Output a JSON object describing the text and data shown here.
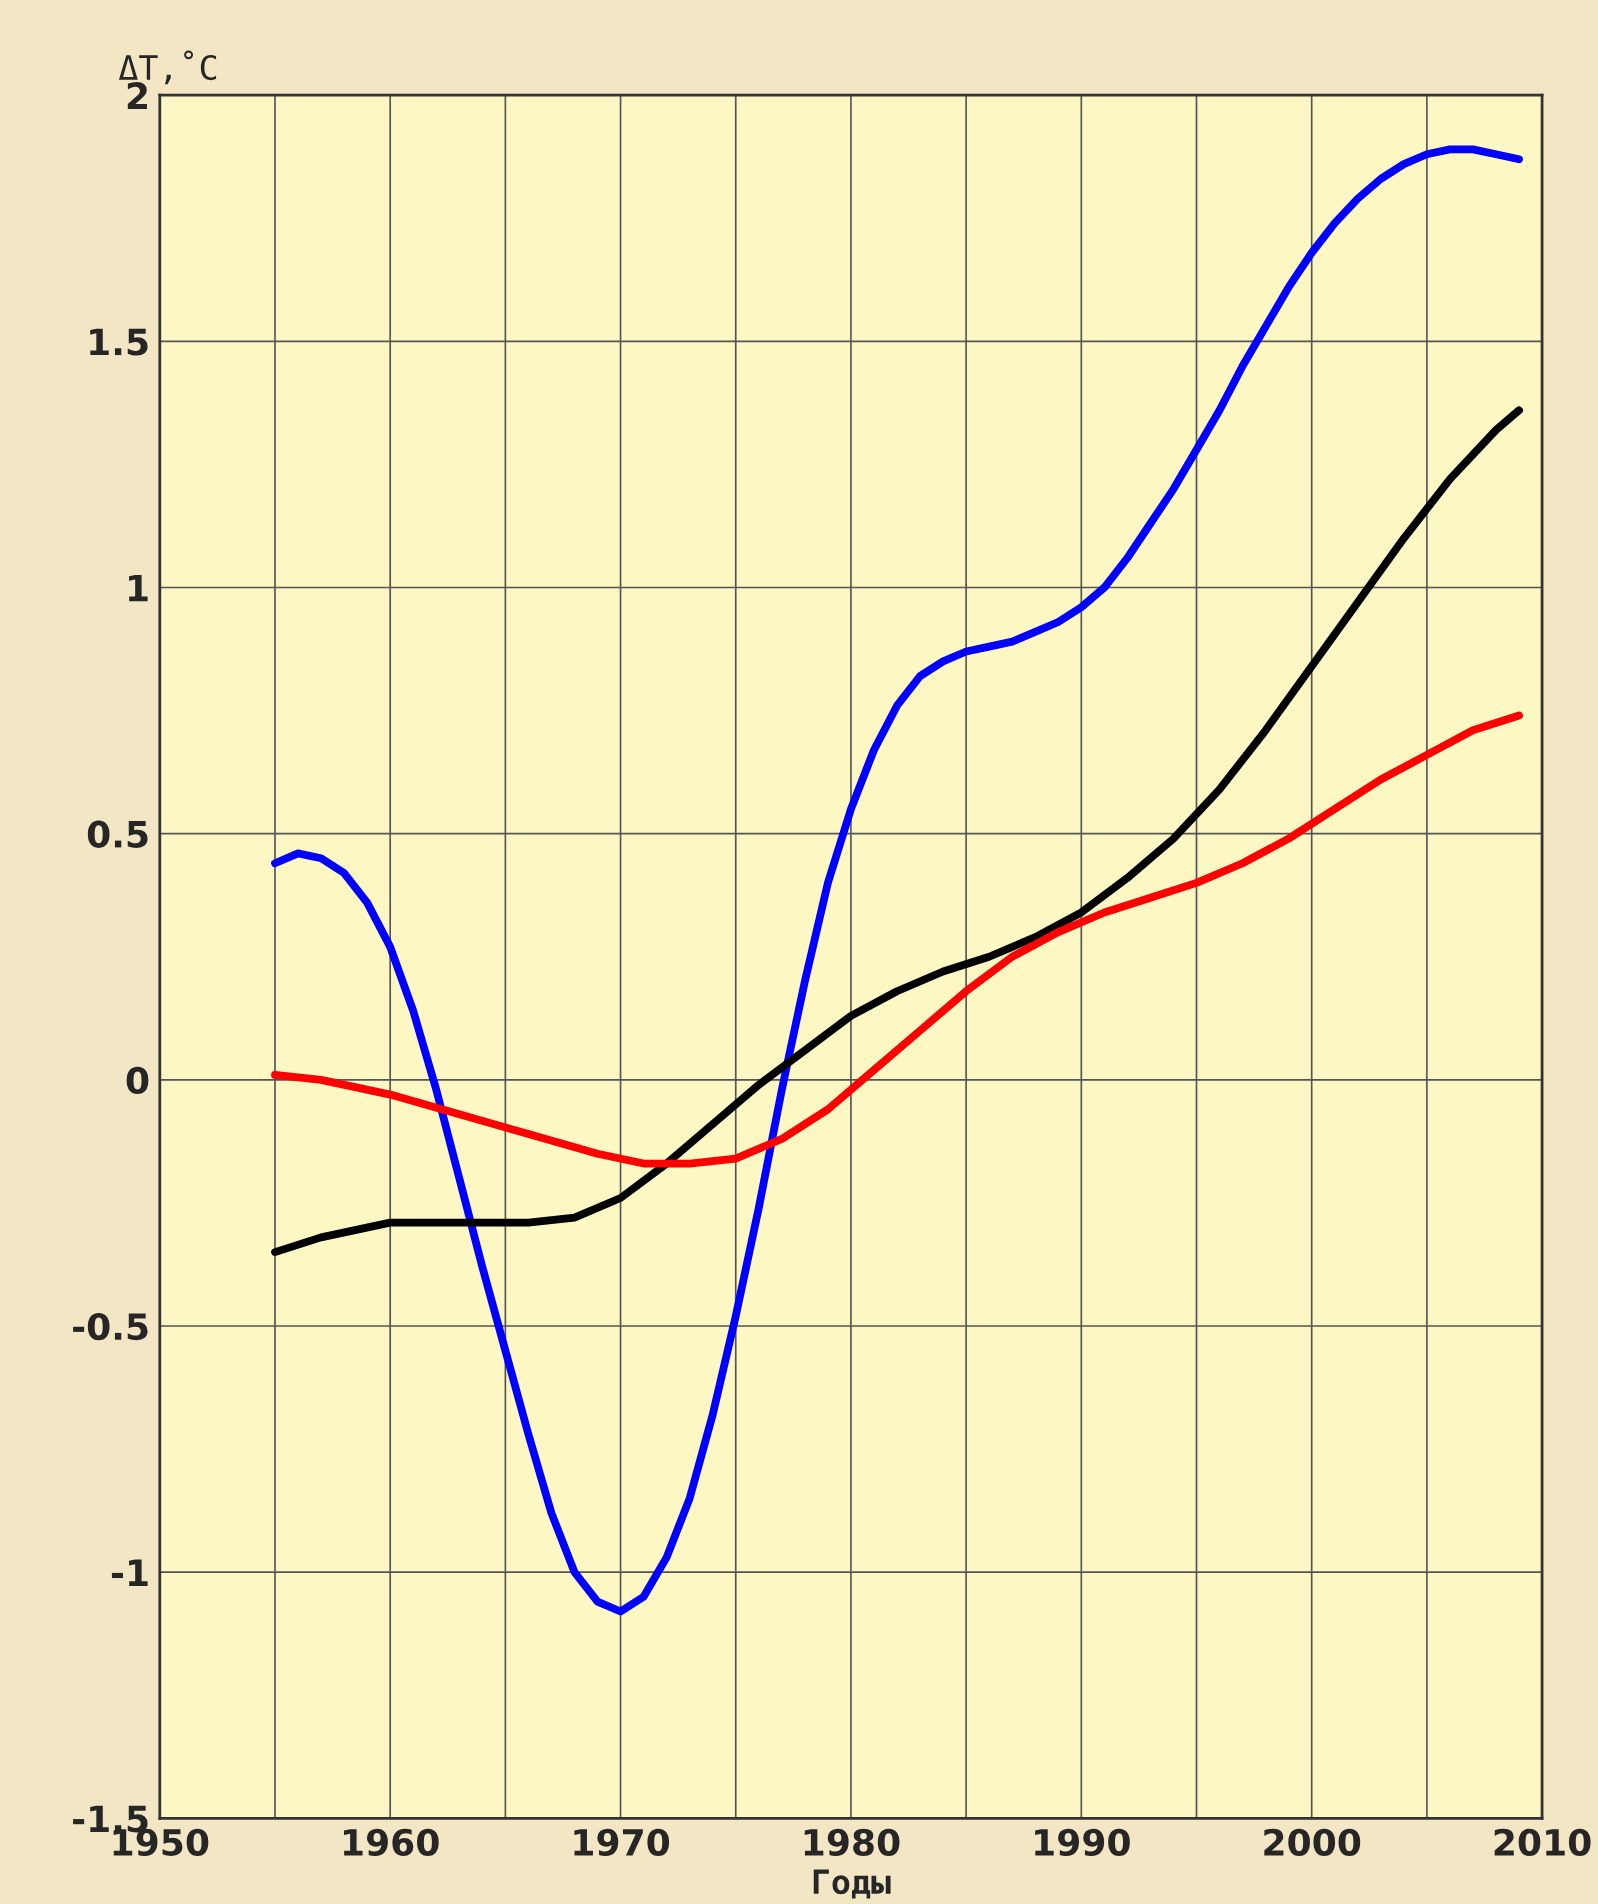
{
  "chart_data": {
    "type": "line",
    "ylabel": "ΔT,˚C",
    "xlabel": "Годы",
    "xlim": [
      1950,
      2010
    ],
    "ylim": [
      -1.5,
      2
    ],
    "xticks": [
      1950,
      {
        "value": 1955,
        "label": null
      },
      1960,
      {
        "value": 1965,
        "label": null
      },
      1970,
      {
        "value": 1975,
        "label": null
      },
      1980,
      {
        "value": 1985,
        "label": null
      },
      1990,
      {
        "value": 1995,
        "label": null
      },
      2000,
      {
        "value": 2005,
        "label": null
      },
      2010
    ],
    "yticks": [
      {
        "value": -1.5,
        "label": "-1.5"
      },
      {
        "value": -1,
        "label": "-1"
      },
      {
        "value": -0.5,
        "label": "-0.5"
      },
      0,
      0.5,
      1,
      1.5,
      2
    ],
    "grid": true,
    "legend": false,
    "marker": "none",
    "line_style": "solid",
    "series": [
      {
        "color": "#0000ff",
        "x": [
          1955,
          1956,
          1957,
          1958,
          1959,
          1960,
          1961,
          1962,
          1963,
          1964,
          1965,
          1966,
          1967,
          1968,
          1969,
          1970,
          1971,
          1972,
          1973,
          1974,
          1975,
          1976,
          1977,
          1978,
          1979,
          1980,
          1981,
          1982,
          1983,
          1984,
          1985,
          1986,
          1987,
          1988,
          1989,
          1990,
          1991,
          1992,
          1993,
          1994,
          1995,
          1996,
          1997,
          1998,
          1999,
          2000,
          2001,
          2002,
          2003,
          2004,
          2005,
          2006,
          2007,
          2008,
          2009
        ],
        "values": [
          0.44,
          0.46,
          0.45,
          0.42,
          0.36,
          0.27,
          0.14,
          -0.02,
          -0.2,
          -0.38,
          -0.55,
          -0.72,
          -0.88,
          -1.0,
          -1.06,
          -1.08,
          -1.05,
          -0.97,
          -0.85,
          -0.68,
          -0.48,
          -0.26,
          -0.02,
          0.2,
          0.4,
          0.55,
          0.67,
          0.76,
          0.82,
          0.85,
          0.87,
          0.88,
          0.89,
          0.91,
          0.93,
          0.96,
          1.0,
          1.06,
          1.13,
          1.2,
          1.28,
          1.36,
          1.45,
          1.53,
          1.61,
          1.68,
          1.74,
          1.79,
          1.83,
          1.86,
          1.88,
          1.89,
          1.89,
          1.88,
          1.87
        ]
      },
      {
        "color": "#000000",
        "x": [
          1955,
          1957,
          1960,
          1963,
          1966,
          1968,
          1970,
          1972,
          1974,
          1976,
          1978,
          1980,
          1982,
          1984,
          1986,
          1988,
          1990,
          1992,
          1994,
          1996,
          1998,
          2000,
          2002,
          2004,
          2006,
          2008,
          2009
        ],
        "values": [
          -0.35,
          -0.32,
          -0.29,
          -0.29,
          -0.29,
          -0.28,
          -0.24,
          -0.17,
          -0.09,
          -0.01,
          0.06,
          0.13,
          0.18,
          0.22,
          0.25,
          0.29,
          0.34,
          0.41,
          0.49,
          0.59,
          0.71,
          0.84,
          0.97,
          1.1,
          1.22,
          1.32,
          1.36
        ]
      },
      {
        "color": "#ff0000",
        "x": [
          1955,
          1957,
          1960,
          1963,
          1966,
          1969,
          1971,
          1973,
          1975,
          1977,
          1979,
          1981,
          1983,
          1985,
          1987,
          1989,
          1991,
          1993,
          1995,
          1997,
          1999,
          2001,
          2003,
          2005,
          2007,
          2009
        ],
        "values": [
          0.01,
          0.0,
          -0.03,
          -0.07,
          -0.11,
          -0.15,
          -0.17,
          -0.17,
          -0.16,
          -0.12,
          -0.06,
          0.02,
          0.1,
          0.18,
          0.25,
          0.3,
          0.34,
          0.37,
          0.4,
          0.44,
          0.49,
          0.55,
          0.61,
          0.66,
          0.71,
          0.74
        ]
      }
    ]
  }
}
